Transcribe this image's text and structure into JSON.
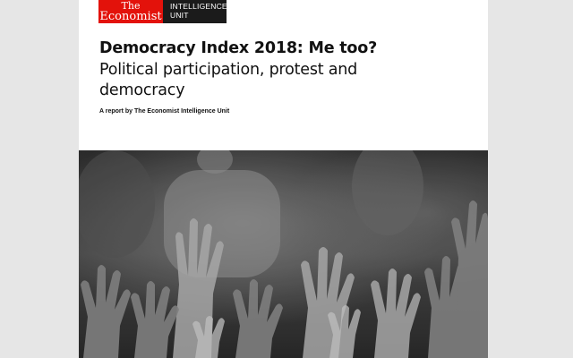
{
  "logos": {
    "economist_line1": "The",
    "economist_line2": "Economist",
    "eiu_line1": "INTELLIGENCE",
    "eiu_line2": "UNIT",
    "economist_color": "#e3120b",
    "eiu_color": "#1b1b1b"
  },
  "cover": {
    "title": "Democracy Index 2018: Me too?",
    "subtitle": "Political participation, protest and democracy",
    "byline": "A report by The Economist Intelligence Unit",
    "photo_icon": "raised-hands-photo"
  }
}
